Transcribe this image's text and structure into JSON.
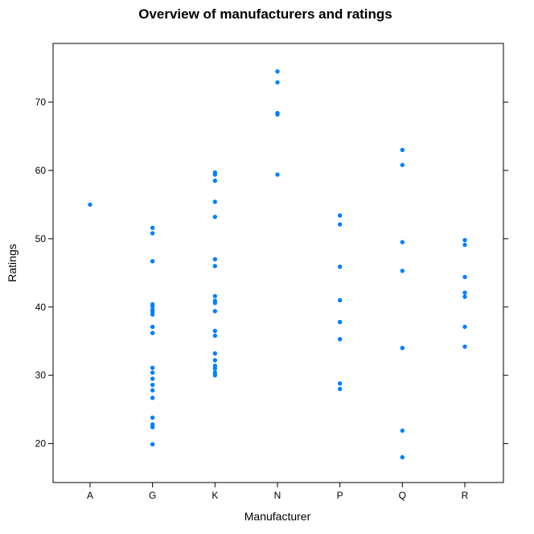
{
  "chart_data": {
    "type": "scatter",
    "title": "Overview of manufacturers and ratings",
    "xlabel": "Manufacturer",
    "ylabel": "Ratings",
    "categories": [
      "A",
      "G",
      "K",
      "N",
      "P",
      "Q",
      "R"
    ],
    "y_ticks": [
      20,
      30,
      40,
      50,
      60,
      70
    ],
    "ylim": [
      14.3,
      78.6
    ],
    "grid": false,
    "point_color": "#0080ff",
    "series": [
      {
        "points": [
          {
            "x": "A",
            "y": 55.0
          },
          {
            "x": "G",
            "y": 51.6
          },
          {
            "x": "G",
            "y": 50.8
          },
          {
            "x": "G",
            "y": 46.7
          },
          {
            "x": "G",
            "y": 40.4
          },
          {
            "x": "G",
            "y": 40.1
          },
          {
            "x": "G",
            "y": 39.6
          },
          {
            "x": "G",
            "y": 39.3
          },
          {
            "x": "G",
            "y": 38.9
          },
          {
            "x": "G",
            "y": 37.1
          },
          {
            "x": "G",
            "y": 36.2
          },
          {
            "x": "G",
            "y": 31.1
          },
          {
            "x": "G",
            "y": 30.4
          },
          {
            "x": "G",
            "y": 29.5
          },
          {
            "x": "G",
            "y": 28.6
          },
          {
            "x": "G",
            "y": 27.8
          },
          {
            "x": "G",
            "y": 26.7
          },
          {
            "x": "G",
            "y": 23.8
          },
          {
            "x": "G",
            "y": 22.8
          },
          {
            "x": "G",
            "y": 22.4
          },
          {
            "x": "G",
            "y": 19.9
          },
          {
            "x": "K",
            "y": 59.7
          },
          {
            "x": "K",
            "y": 59.4
          },
          {
            "x": "K",
            "y": 58.5
          },
          {
            "x": "K",
            "y": 55.4
          },
          {
            "x": "K",
            "y": 53.2
          },
          {
            "x": "K",
            "y": 47.0
          },
          {
            "x": "K",
            "y": 46.0
          },
          {
            "x": "K",
            "y": 41.6
          },
          {
            "x": "K",
            "y": 40.9
          },
          {
            "x": "K",
            "y": 40.6
          },
          {
            "x": "K",
            "y": 39.4
          },
          {
            "x": "K",
            "y": 36.5
          },
          {
            "x": "K",
            "y": 35.8
          },
          {
            "x": "K",
            "y": 33.2
          },
          {
            "x": "K",
            "y": 32.2
          },
          {
            "x": "K",
            "y": 31.4
          },
          {
            "x": "K",
            "y": 31.0
          },
          {
            "x": "K",
            "y": 30.4
          },
          {
            "x": "K",
            "y": 30.0
          },
          {
            "x": "N",
            "y": 74.5
          },
          {
            "x": "N",
            "y": 72.9
          },
          {
            "x": "N",
            "y": 68.4
          },
          {
            "x": "N",
            "y": 68.2
          },
          {
            "x": "N",
            "y": 59.4
          },
          {
            "x": "P",
            "y": 53.4
          },
          {
            "x": "P",
            "y": 52.1
          },
          {
            "x": "P",
            "y": 45.9
          },
          {
            "x": "P",
            "y": 41.0
          },
          {
            "x": "P",
            "y": 37.8
          },
          {
            "x": "P",
            "y": 35.3
          },
          {
            "x": "P",
            "y": 28.8
          },
          {
            "x": "P",
            "y": 28.0
          },
          {
            "x": "Q",
            "y": 63.0
          },
          {
            "x": "Q",
            "y": 60.8
          },
          {
            "x": "Q",
            "y": 49.5
          },
          {
            "x": "Q",
            "y": 45.3
          },
          {
            "x": "Q",
            "y": 34.0
          },
          {
            "x": "Q",
            "y": 21.9
          },
          {
            "x": "Q",
            "y": 18.0
          },
          {
            "x": "R",
            "y": 49.8
          },
          {
            "x": "R",
            "y": 49.1
          },
          {
            "x": "R",
            "y": 44.4
          },
          {
            "x": "R",
            "y": 42.1
          },
          {
            "x": "R",
            "y": 41.5
          },
          {
            "x": "R",
            "y": 37.1
          },
          {
            "x": "R",
            "y": 34.2
          }
        ]
      }
    ]
  }
}
